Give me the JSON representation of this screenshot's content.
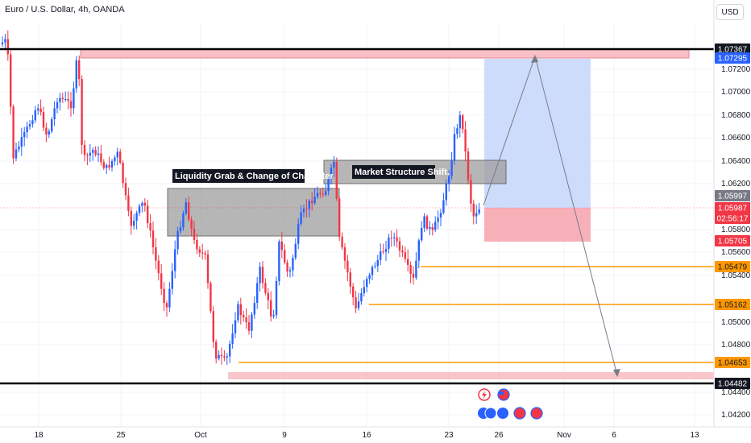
{
  "header": {
    "title": "Euro / U.S. Dollar, 4h, OANDA",
    "currency_button": "USD"
  },
  "chart_data": {
    "type": "candlestick",
    "symbol": "EURUSD",
    "timeframe": "4h",
    "y_ticks": [
      "1.07200",
      "1.07000",
      "1.06800",
      "1.06600",
      "1.06400",
      "1.06200",
      "1.05800",
      "1.05600",
      "1.05400",
      "1.05000",
      "1.04800",
      "1.04400",
      "1.04200"
    ],
    "x_ticks": [
      "18",
      "25",
      "Oct",
      "9",
      "16",
      "23",
      "26",
      "Nov",
      "6",
      "13"
    ],
    "price_tags": [
      {
        "label": "1.07367",
        "bg": "#131722",
        "fg": "#ffffff"
      },
      {
        "label": "1.07295",
        "bg": "#2962ff",
        "fg": "#ffffff"
      },
      {
        "label": "1.05997",
        "bg": "#787b86",
        "fg": "#ffffff"
      },
      {
        "label": "1.05987",
        "bg": "#f23645",
        "fg": "#ffffff"
      },
      {
        "label": "02:56:17",
        "bg": "#f23645",
        "fg": "#ffffff"
      },
      {
        "label": "1.05705",
        "bg": "#f23645",
        "fg": "#ffffff"
      },
      {
        "label": "1.05479",
        "bg": "#ff9800",
        "fg": "#131722"
      },
      {
        "label": "1.05162",
        "bg": "#ff9800",
        "fg": "#131722"
      },
      {
        "label": "1.04653",
        "bg": "#ff9800",
        "fg": "#131722"
      },
      {
        "label": "1.04482",
        "bg": "#131722",
        "fg": "#ffffff"
      }
    ],
    "annotations": [
      "Liquidity Grab & Change of Character",
      "Market Structure Shift."
    ],
    "levels": {
      "resistance": 1.07367,
      "target": 1.07295,
      "current": 1.05987,
      "stop": 1.05705,
      "orange_1": 1.05479,
      "orange_2": 1.05162,
      "orange_3": 1.04653,
      "support": 1.04482
    },
    "colors": {
      "bull": "#2962ff",
      "bear": "#f23645",
      "orange": "#ff9800",
      "zone_pink": "#f7b6bd",
      "zone_blue": "#c5d6fb",
      "zone_grey": "#9e9e9e"
    }
  }
}
